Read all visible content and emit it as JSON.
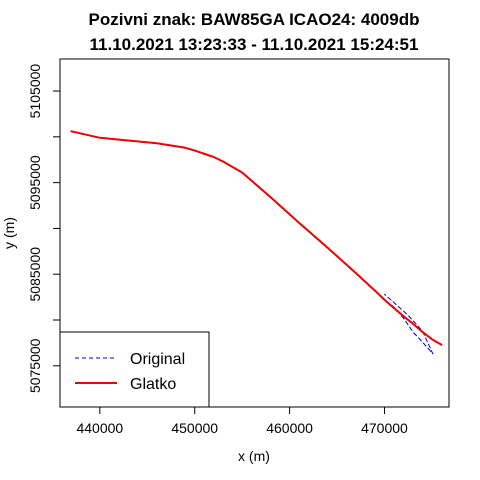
{
  "chart_data": {
    "type": "line",
    "title_lines": [
      "Pozivni znak: BAW85GA  ICAO24: 4009db",
      "11.10.2021 13:23:33 - 11.10.2021 15:24:51"
    ],
    "xlabel": "x (m)",
    "ylabel": "y (m)",
    "xlim": [
      435800,
      476800
    ],
    "ylim": [
      5070500,
      5108500
    ],
    "x_ticks": [
      440000,
      450000,
      460000,
      470000
    ],
    "x_tick_labels": [
      "440000",
      "450000",
      "460000",
      "470000"
    ],
    "y_ticks": [
      5075000,
      5080000,
      5085000,
      5090000,
      5095000,
      5100000,
      5105000
    ],
    "y_tick_labels": [
      "5075000",
      "",
      "5085000",
      "",
      "5095000",
      "",
      "5105000"
    ],
    "grid": false,
    "legend": {
      "position": "bottom-left",
      "entries": [
        {
          "label": "Original",
          "style": "dashed"
        },
        {
          "label": "Glatko",
          "style": "solid"
        }
      ]
    },
    "series": [
      {
        "name": "Original",
        "color": "#0000cc",
        "line_style": "dashed",
        "x": [
          437000,
          440000,
          443000,
          446000,
          449000,
          450000,
          452000,
          453000,
          455000,
          458000,
          461000,
          464000,
          467000,
          469000,
          470000,
          471000,
          472000,
          473000,
          474000,
          475100,
          474000,
          472500,
          471000,
          470000
        ],
        "y": [
          5100600,
          5099900,
          5099600,
          5099300,
          5098800,
          5098500,
          5097800,
          5097300,
          5096100,
          5093400,
          5090600,
          5087900,
          5085100,
          5083200,
          5082200,
          5081400,
          5080200,
          5078700,
          5077600,
          5076300,
          5078800,
          5080500,
          5081900,
          5082800
        ]
      },
      {
        "name": "Glatko",
        "color": "#ee0000",
        "line_style": "solid",
        "x": [
          437000,
          440000,
          443000,
          446000,
          449000,
          450000,
          452000,
          453000,
          455000,
          458000,
          461000,
          464000,
          467000,
          469000,
          470000,
          471000,
          472000,
          473000,
          474000,
          475000,
          476000
        ],
        "y": [
          5100600,
          5099900,
          5099600,
          5099300,
          5098800,
          5098500,
          5097800,
          5097300,
          5096100,
          5093400,
          5090600,
          5087900,
          5085100,
          5083200,
          5082200,
          5081300,
          5080400,
          5079600,
          5078700,
          5077900,
          5077300
        ]
      }
    ]
  }
}
